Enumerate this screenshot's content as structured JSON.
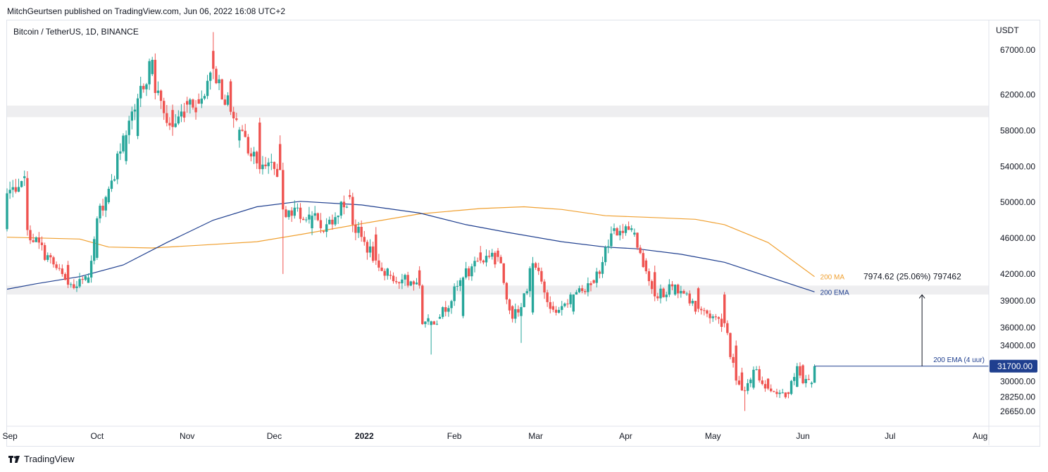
{
  "header": {
    "publish_line": "MitchGeurtsen published on TradingView.com, Jun 06, 2022 16:08 UTC+2"
  },
  "symbol_label": "Bitcoin / TetherUS, 1D, BINANCE",
  "footer": {
    "brand": "TradingView"
  },
  "colors": {
    "up": "#26a69a",
    "down": "#ef5350",
    "ma": "#f0a030",
    "ema": "#1f3f8f",
    "zone": "#eeeef0",
    "annotation": "#1f3f8f",
    "price_badge": "#1f3f8f"
  },
  "chart_data": {
    "type": "candlestick",
    "title": "Bitcoin / TetherUS, 1D, BINANCE",
    "currency_label": "USDT",
    "x_range": [
      "2021-08-31",
      "2022-08-04"
    ],
    "ylim": [
      25000,
      70300
    ],
    "y_ticks": [
      {
        "value": 67000,
        "label": "67000.00"
      },
      {
        "value": 62000,
        "label": "62000.00"
      },
      {
        "value": 58000,
        "label": "58000.00"
      },
      {
        "value": 54000,
        "label": "54000.00"
      },
      {
        "value": 50000,
        "label": "50000.00"
      },
      {
        "value": 46000,
        "label": "46000.00"
      },
      {
        "value": 42000,
        "label": "42000.00"
      },
      {
        "value": 39000,
        "label": "39000.00"
      },
      {
        "value": 36000,
        "label": "36000.00"
      },
      {
        "value": 34000,
        "label": "34000.00"
      },
      {
        "value": 30000,
        "label": "30000.00"
      },
      {
        "value": 28250,
        "label": "28250.00"
      },
      {
        "value": 26650,
        "label": "26650.00"
      }
    ],
    "x_ticks": [
      {
        "date": "2021-09-01",
        "label": "Sep",
        "bold": false
      },
      {
        "date": "2021-10-01",
        "label": "Oct",
        "bold": false
      },
      {
        "date": "2021-11-01",
        "label": "Nov",
        "bold": false
      },
      {
        "date": "2021-12-01",
        "label": "Dec",
        "bold": false
      },
      {
        "date": "2022-01-01",
        "label": "2022",
        "bold": true
      },
      {
        "date": "2022-02-01",
        "label": "Feb",
        "bold": false
      },
      {
        "date": "2022-03-01",
        "label": "Mar",
        "bold": false
      },
      {
        "date": "2022-04-01",
        "label": "Apr",
        "bold": false
      },
      {
        "date": "2022-05-01",
        "label": "May",
        "bold": false
      },
      {
        "date": "2022-06-01",
        "label": "Jun",
        "bold": false
      },
      {
        "date": "2022-07-01",
        "label": "Jul",
        "bold": false
      },
      {
        "date": "2022-08-01",
        "label": "Aug",
        "bold": false
      }
    ],
    "resistance_zones": [
      {
        "low": 59500,
        "high": 60800
      },
      {
        "low": 39700,
        "high": 40700
      }
    ],
    "moving_averages": [
      {
        "name": "200 MA",
        "label": "200 MA",
        "color": "#f0a030",
        "points": [
          [
            "2021-08-31",
            46100
          ],
          [
            "2021-09-25",
            45900
          ],
          [
            "2021-10-05",
            45000
          ],
          [
            "2021-10-20",
            44900
          ],
          [
            "2021-11-05",
            45200
          ],
          [
            "2021-11-25",
            45600
          ],
          [
            "2021-12-10",
            46400
          ],
          [
            "2021-12-31",
            47600
          ],
          [
            "2022-01-20",
            48700
          ],
          [
            "2022-02-10",
            49300
          ],
          [
            "2022-02-25",
            49500
          ],
          [
            "2022-03-10",
            49200
          ],
          [
            "2022-03-25",
            48500
          ],
          [
            "2022-04-10",
            48300
          ],
          [
            "2022-04-25",
            48100
          ],
          [
            "2022-05-05",
            47500
          ],
          [
            "2022-05-20",
            45500
          ],
          [
            "2022-06-05",
            41700
          ]
        ]
      },
      {
        "name": "200 EMA",
        "label": "200 EMA",
        "color": "#1f3f8f",
        "points": [
          [
            "2021-08-31",
            40300
          ],
          [
            "2021-09-10",
            40900
          ],
          [
            "2021-09-25",
            41700
          ],
          [
            "2021-10-10",
            43000
          ],
          [
            "2021-10-25",
            45500
          ],
          [
            "2021-11-10",
            48000
          ],
          [
            "2021-11-25",
            49500
          ],
          [
            "2021-12-10",
            50100
          ],
          [
            "2021-12-31",
            49700
          ],
          [
            "2022-01-20",
            48800
          ],
          [
            "2022-02-05",
            47500
          ],
          [
            "2022-02-20",
            46600
          ],
          [
            "2022-03-10",
            45600
          ],
          [
            "2022-03-25",
            45000
          ],
          [
            "2022-04-05",
            44800
          ],
          [
            "2022-04-20",
            44200
          ],
          [
            "2022-05-05",
            43300
          ],
          [
            "2022-05-20",
            41700
          ],
          [
            "2022-06-05",
            40000
          ]
        ]
      }
    ],
    "annotations": {
      "measure_text": "7974.62 (25.06%) 797462",
      "ema_4h_label": "200 EMA (4 uur)",
      "ema_4h_level": 31700,
      "ema_4h_start": "2022-06-05",
      "ema_4h_end": "2022-08-04",
      "arrow_date": "2022-07-12",
      "arrow_from": 31700,
      "arrow_to": 39670
    },
    "current_price": {
      "value": 31700,
      "label": "31700.00"
    },
    "anchor_candles": [
      [
        "2021-08-31",
        47000,
        51000
      ],
      [
        "2021-09-06",
        52700,
        52900
      ],
      [
        "2021-09-07",
        52700,
        46900
      ],
      [
        "2021-09-21",
        43000,
        40800
      ],
      [
        "2021-09-28",
        41000,
        41600
      ],
      [
        "2021-10-01",
        43800,
        48200
      ],
      [
        "2021-10-05",
        50000,
        51500
      ],
      [
        "2021-10-11",
        54600,
        57500
      ],
      [
        "2021-10-15",
        57400,
        61600
      ],
      [
        "2021-10-20",
        64300,
        65900
      ],
      [
        "2021-10-21",
        65900,
        62200
      ],
      [
        "2021-10-27",
        60300,
        58400
      ],
      [
        "2021-11-01",
        61300,
        60900
      ],
      [
        "2021-11-05",
        61500,
        61000
      ],
      [
        "2021-11-10",
        66900,
        64900
      ],
      [
        "2021-11-16",
        63500,
        60100
      ],
      [
        "2021-11-19",
        56900,
        58100
      ],
      [
        "2021-11-26",
        58900,
        53700
      ],
      [
        "2021-12-03",
        56500,
        53600
      ],
      [
        "2021-12-04",
        53600,
        49200
      ],
      [
        "2021-12-14",
        47100,
        48500
      ],
      [
        "2021-12-18",
        46800,
        46700
      ],
      [
        "2021-12-27",
        50800,
        50600
      ],
      [
        "2021-12-28",
        50600,
        47500
      ],
      [
        "2022-01-05",
        46400,
        43500
      ],
      [
        "2022-01-10",
        41900,
        41800
      ],
      [
        "2022-01-20",
        42400,
        40700
      ],
      [
        "2022-01-21",
        40700,
        36400
      ],
      [
        "2022-01-24",
        36300,
        36700
      ],
      [
        "2022-01-27",
        37000,
        37200
      ],
      [
        "2022-02-04",
        37300,
        41600
      ],
      [
        "2022-02-10",
        44400,
        43500
      ],
      [
        "2022-02-16",
        44600,
        43900
      ],
      [
        "2022-02-21",
        38400,
        37000
      ],
      [
        "2022-02-24",
        37300,
        38300
      ],
      [
        "2022-02-28",
        37700,
        43200
      ],
      [
        "2022-03-07",
        38400,
        38000
      ],
      [
        "2022-03-14",
        37800,
        39700
      ],
      [
        "2022-03-21",
        41300,
        41000
      ],
      [
        "2022-03-28",
        46800,
        47100
      ],
      [
        "2022-04-04",
        46400,
        46600
      ],
      [
        "2022-04-08",
        43500,
        42300
      ],
      [
        "2022-04-11",
        42200,
        39500
      ],
      [
        "2022-04-18",
        39700,
        40800
      ],
      [
        "2022-04-26",
        40400,
        38100
      ],
      [
        "2022-05-05",
        39700,
        36500
      ],
      [
        "2022-05-09",
        34000,
        30100
      ],
      [
        "2022-05-11",
        31000,
        29000
      ],
      [
        "2022-05-12",
        29000,
        28950
      ],
      [
        "2022-05-15",
        29300,
        31300
      ],
      [
        "2022-05-20",
        30300,
        29200
      ],
      [
        "2022-05-27",
        28800,
        28600
      ],
      [
        "2022-05-30",
        29400,
        31700
      ],
      [
        "2022-06-01",
        31800,
        29800
      ],
      [
        "2022-06-04",
        29700,
        29850
      ],
      [
        "2022-06-05",
        29850,
        31700
      ]
    ],
    "extreme_wicks": [
      [
        "2021-12-04",
        42000
      ],
      [
        "2022-01-24",
        33000
      ],
      [
        "2022-02-24",
        34300
      ],
      [
        "2022-05-12",
        26700
      ],
      [
        "2021-11-10",
        69000
      ]
    ]
  }
}
